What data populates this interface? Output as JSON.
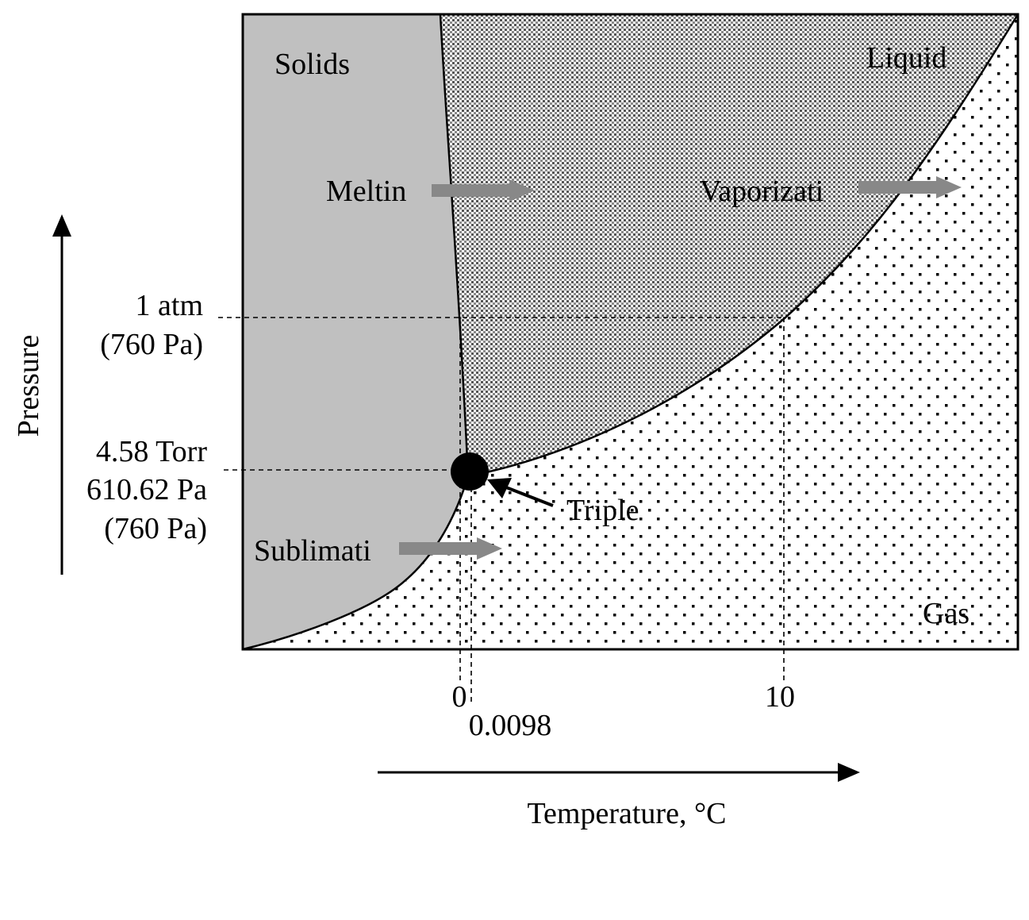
{
  "regions": {
    "solids": "Solids",
    "liquid": "Liquid",
    "gas": "Gas"
  },
  "transitions": {
    "melting": "Meltin",
    "vaporization": "Vaporizati",
    "sublimation": "Sublimati",
    "triple_point": "Triple"
  },
  "pressure_labels": {
    "atm_line1": "1 atm",
    "atm_line2": "(760 Pa)",
    "triple_line1": "4.58 Torr",
    "triple_line2": "610.62 Pa",
    "triple_line3": "(760 Pa)"
  },
  "temperature_ticks": {
    "zero": "0",
    "triple": "0.0098",
    "ten": "10"
  },
  "axes": {
    "y_label": "Pressure",
    "x_label": "Temperature, °C"
  },
  "colors": {
    "solid_fill": "#c0c0c0",
    "arrow_fill": "#888888",
    "ink": "#000000"
  }
}
